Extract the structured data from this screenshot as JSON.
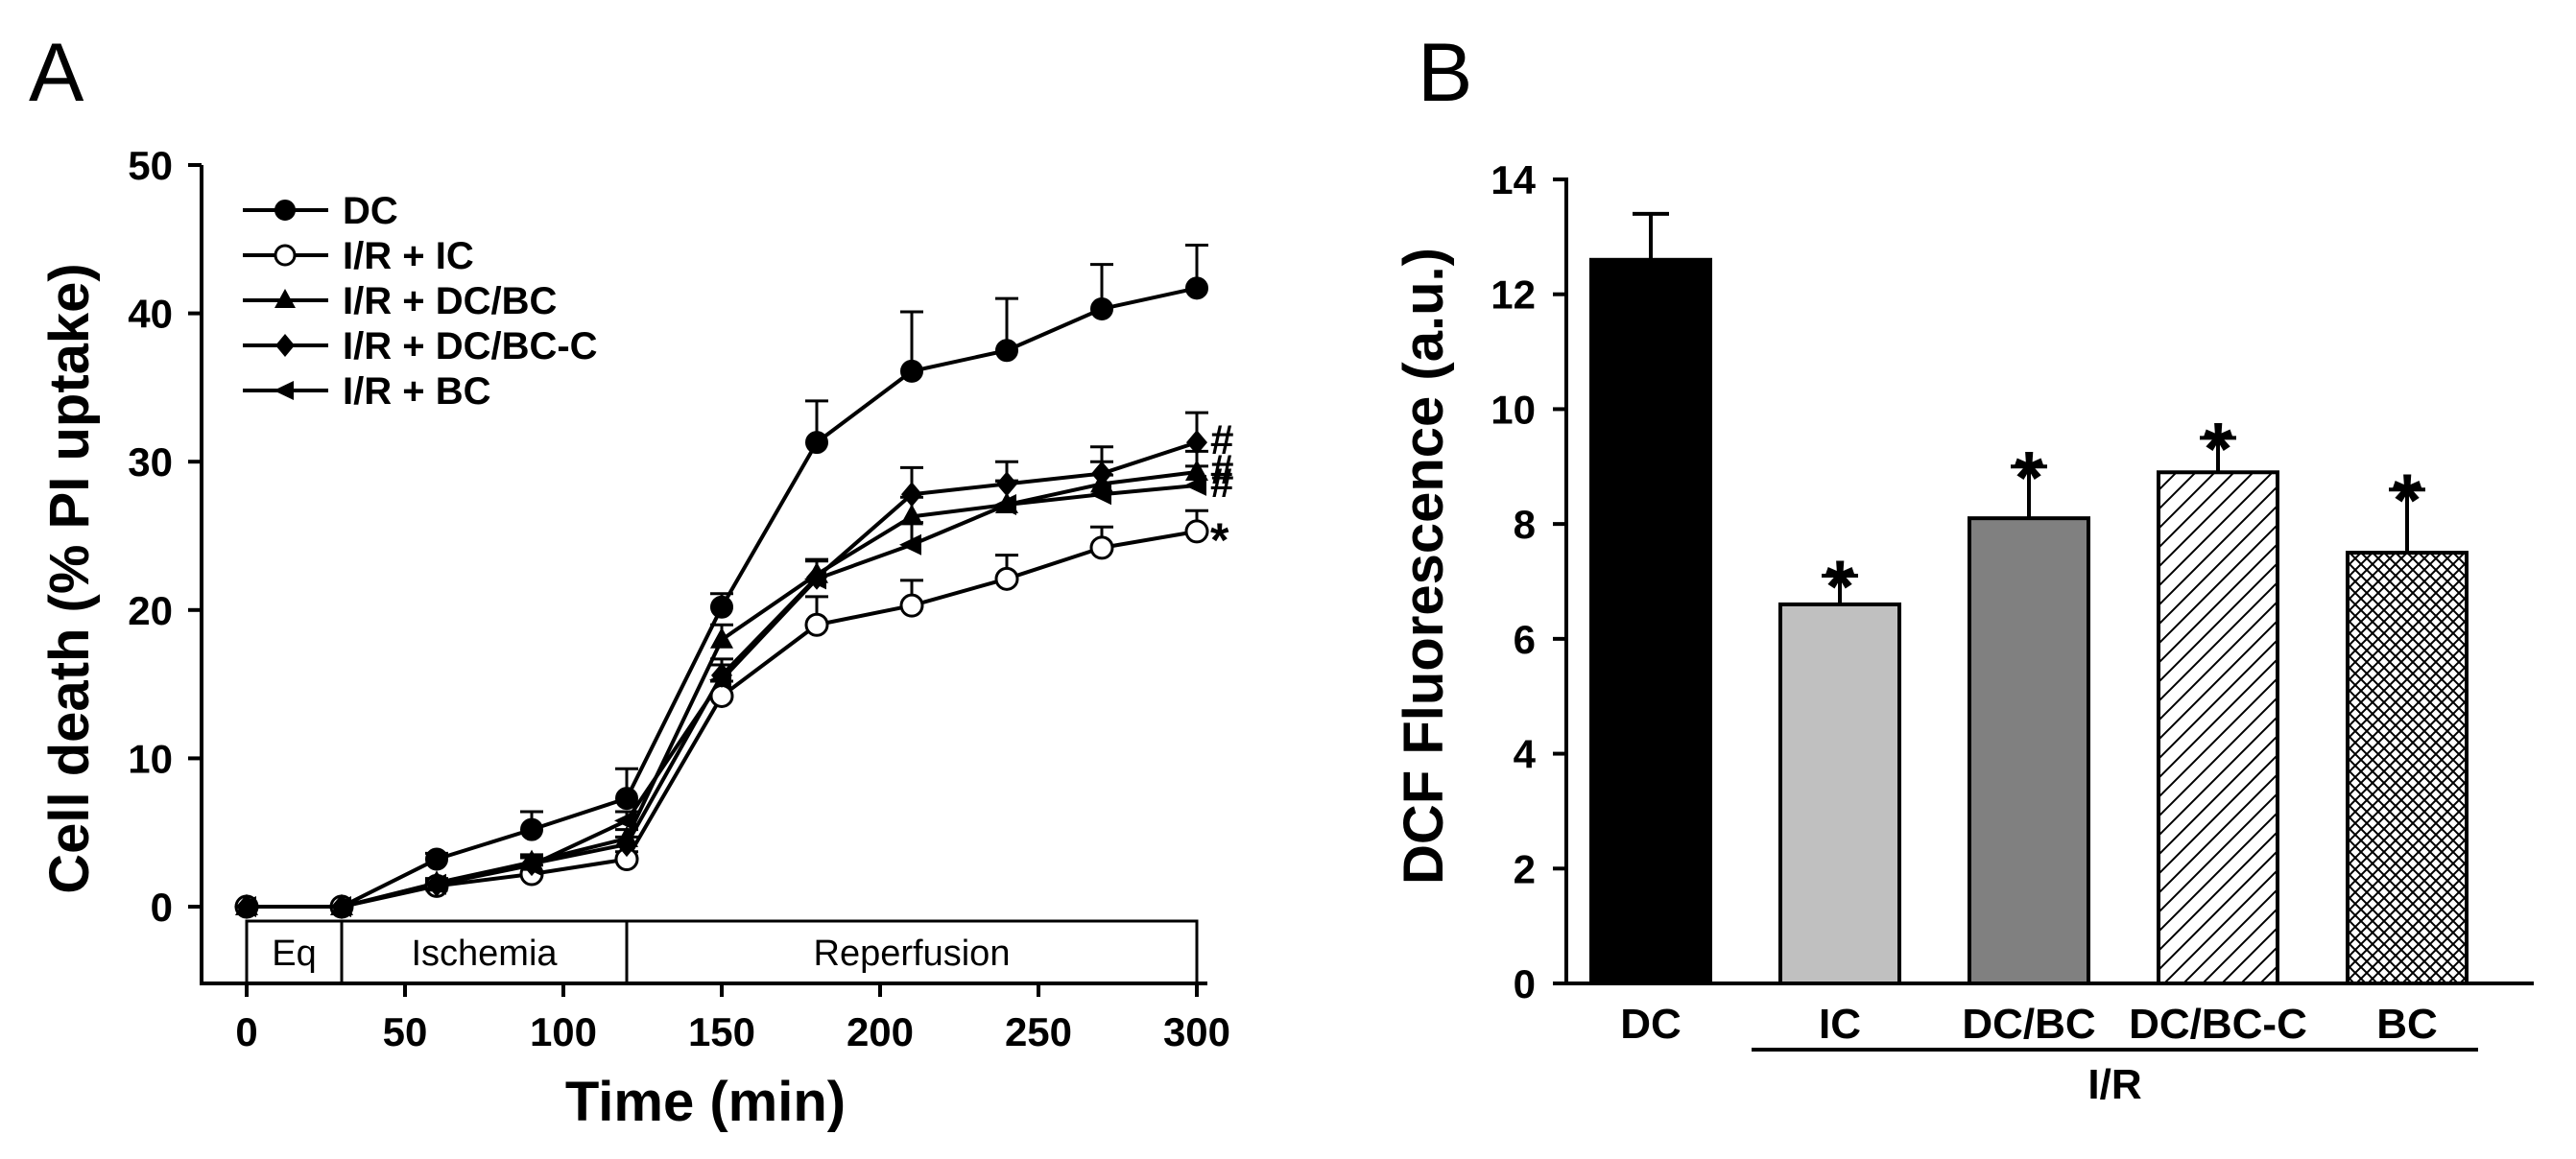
{
  "colors": {
    "ink": "#000000",
    "paper": "#ffffff",
    "bar_ic": "#c0c0c0",
    "bar_dcbc": "#808080"
  },
  "chart_data": [
    {
      "type": "line",
      "panel_label": "A",
      "xlabel": "Time (min)",
      "ylabel": "Cell death (% PI uptake)",
      "xlim": [
        0,
        300
      ],
      "ylim": [
        0,
        50
      ],
      "x_ticks": [
        "0",
        "50",
        "100",
        "150",
        "200",
        "250",
        "300"
      ],
      "y_ticks": [
        "0",
        "10",
        "20",
        "30",
        "40",
        "50"
      ],
      "legend_position": "top-left",
      "phases": [
        {
          "label": "Eq",
          "start": 0,
          "end": 30
        },
        {
          "label": "Ischemia",
          "start": 30,
          "end": 120
        },
        {
          "label": "Reperfusion",
          "start": 120,
          "end": 300
        }
      ],
      "x": [
        0,
        30,
        60,
        90,
        120,
        150,
        180,
        210,
        240,
        270,
        300
      ],
      "series": [
        {
          "name": "DC",
          "marker": "filled-circle",
          "values": [
            0,
            0,
            3.2,
            5.2,
            7.3,
            20.2,
            31.3,
            36.1,
            37.5,
            40.3,
            41.7
          ],
          "error": [
            0,
            0,
            0.4,
            1.2,
            2.0,
            0.9,
            2.8,
            4.0,
            3.5,
            3.0,
            2.9
          ]
        },
        {
          "name": "I/R + IC",
          "marker": "open-circle",
          "values": [
            0,
            0,
            1.4,
            2.2,
            3.2,
            14.2,
            19.0,
            20.3,
            22.1,
            24.2,
            25.3
          ],
          "error": [
            0,
            0,
            0.3,
            0.6,
            0.5,
            1.0,
            1.9,
            1.7,
            1.6,
            1.4,
            1.4
          ]
        },
        {
          "name": "I/R + DC/BC",
          "marker": "filled-triangle",
          "values": [
            0,
            0,
            1.6,
            3.0,
            4.6,
            18.0,
            22.4,
            26.3,
            27.1,
            28.5,
            29.3
          ],
          "error": [
            0,
            0,
            0.3,
            0.5,
            0.6,
            1.0,
            1.0,
            1.3,
            1.6,
            1.5,
            1.4
          ]
        },
        {
          "name": "I/R + DC/BC-C",
          "marker": "filled-diamond",
          "values": [
            0,
            0,
            1.5,
            2.9,
            4.2,
            15.6,
            22.2,
            27.8,
            28.5,
            29.2,
            31.3
          ],
          "error": [
            0,
            0,
            0.3,
            0.5,
            0.5,
            1.1,
            1.2,
            1.8,
            1.5,
            1.8,
            2.0
          ]
        },
        {
          "name": "I/R + BC",
          "marker": "left-triangle",
          "values": [
            0,
            0,
            1.5,
            2.8,
            5.8,
            15.3,
            22.1,
            24.4,
            27.1,
            27.8,
            28.4
          ],
          "error": [
            0,
            0,
            0.3,
            0.5,
            0.6,
            1.0,
            1.2,
            1.5,
            1.6,
            1.3,
            1.3
          ]
        }
      ],
      "end_marks": [
        {
          "series": "I/R + DC/BC-C",
          "text": "#"
        },
        {
          "series": "I/R + DC/BC",
          "text": "#"
        },
        {
          "series": "I/R + BC",
          "text": "#"
        },
        {
          "series": "I/R + IC",
          "text": "*"
        }
      ]
    },
    {
      "type": "bar",
      "panel_label": "B",
      "ylabel": "DCF Fluorescence (a.u.)",
      "ylim": [
        0,
        14
      ],
      "y_ticks": [
        "0",
        "2",
        "4",
        "6",
        "8",
        "10",
        "12",
        "14"
      ],
      "categories": [
        "DC",
        "IC",
        "DC/BC",
        "DC/BC-C",
        "BC"
      ],
      "values": [
        12.6,
        6.6,
        8.1,
        8.9,
        7.5
      ],
      "error": [
        0.8,
        0.5,
        0.9,
        0.6,
        1.1
      ],
      "fills": [
        "solid-black",
        "light-gray",
        "dark-gray",
        "diagonal-hatch",
        "crosshatch"
      ],
      "significance": [
        "",
        "*",
        "*",
        "*",
        "*"
      ],
      "group_label": "I/R",
      "group_members": [
        "IC",
        "DC/BC",
        "DC/BC-C",
        "BC"
      ]
    }
  ]
}
